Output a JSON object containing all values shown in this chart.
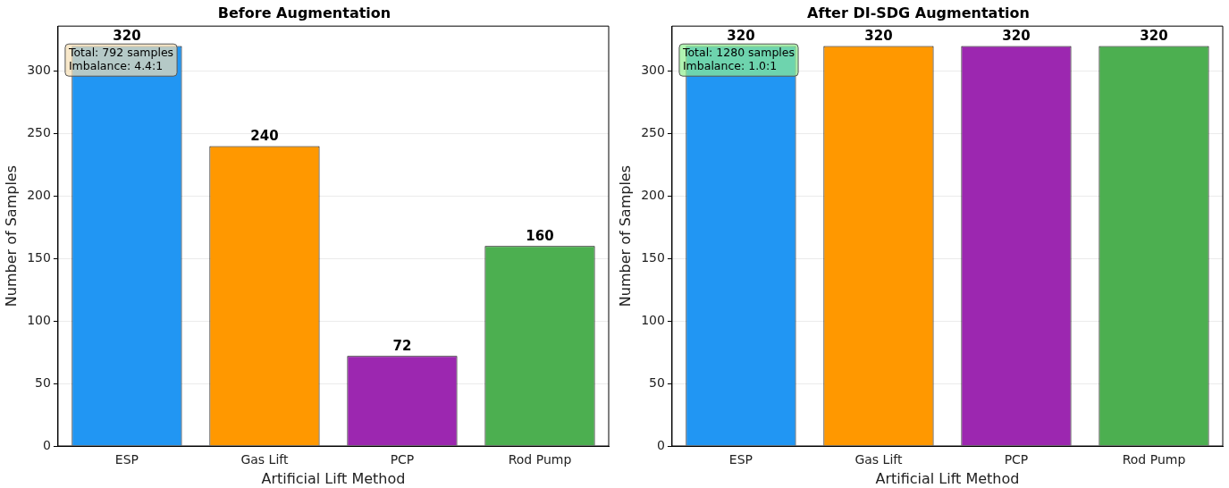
{
  "chart_data": [
    {
      "type": "bar",
      "title": "Before Augmentation",
      "xlabel": "Artificial Lift Method",
      "ylabel": "Number of Samples",
      "categories": [
        "ESP",
        "Gas Lift",
        "PCP",
        "Rod Pump"
      ],
      "values": [
        320,
        240,
        72,
        160
      ],
      "colors": [
        "#2196f3",
        "#ff9800",
        "#9c27b0",
        "#4caf50"
      ],
      "ylim": [
        0,
        336
      ],
      "yticks": [
        0,
        50,
        100,
        150,
        200,
        250,
        300
      ],
      "grid": "y",
      "data_labels": true,
      "annotations": [
        "Total: 792 samples\nImbalance: 4.4:1"
      ]
    },
    {
      "type": "bar",
      "title": "After DI-SDG Augmentation",
      "xlabel": "Artificial Lift Method",
      "ylabel": "Number of Samples",
      "categories": [
        "ESP",
        "Gas Lift",
        "PCP",
        "Rod Pump"
      ],
      "values": [
        320,
        320,
        320,
        320
      ],
      "colors": [
        "#2196f3",
        "#ff9800",
        "#9c27b0",
        "#4caf50"
      ],
      "ylim": [
        0,
        336
      ],
      "yticks": [
        0,
        50,
        100,
        150,
        200,
        250,
        300
      ],
      "grid": "y",
      "data_labels": true,
      "annotations": [
        "Total: 1280 samples\nImbalance: 1.0:1"
      ]
    }
  ]
}
